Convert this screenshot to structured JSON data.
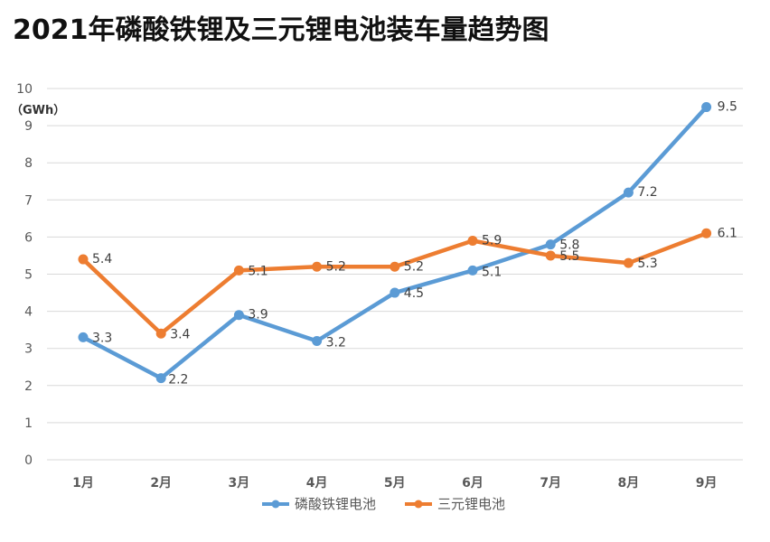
{
  "title": "2021年磷酸铁锂及三元锂电池装车量趋势图",
  "chart_data": {
    "type": "line",
    "title": "2021年磷酸铁锂及三元锂电池装车量趋势图",
    "ylabel": "（GWh）",
    "xlabel": "",
    "categories": [
      "1月",
      "2月",
      "3月",
      "4月",
      "5月",
      "6月",
      "7月",
      "8月",
      "9月"
    ],
    "ylim": [
      0,
      10
    ],
    "yticks": [
      0,
      1,
      2,
      3,
      4,
      5,
      6,
      7,
      8,
      9,
      10
    ],
    "grid": true,
    "legend_position": "bottom",
    "series": [
      {
        "name": "磷酸铁锂电池",
        "color": "#5B9BD5",
        "values": [
          3.3,
          2.2,
          3.9,
          3.2,
          4.5,
          5.1,
          5.8,
          7.2,
          9.5
        ],
        "labels": [
          "3.3",
          "2.2",
          "3.9",
          "3.2",
          "4.5",
          "5.1",
          "5.8",
          "7.2",
          "9.5"
        ]
      },
      {
        "name": "三元锂电池",
        "color": "#ED7D31",
        "values": [
          5.4,
          3.4,
          5.1,
          5.2,
          5.2,
          5.9,
          5.5,
          5.3,
          6.1
        ],
        "labels": [
          "5.4",
          "3.4",
          "5.1",
          "5.2",
          "5.2",
          "5.9",
          "5.5",
          "5.3",
          "6.1"
        ]
      }
    ]
  }
}
